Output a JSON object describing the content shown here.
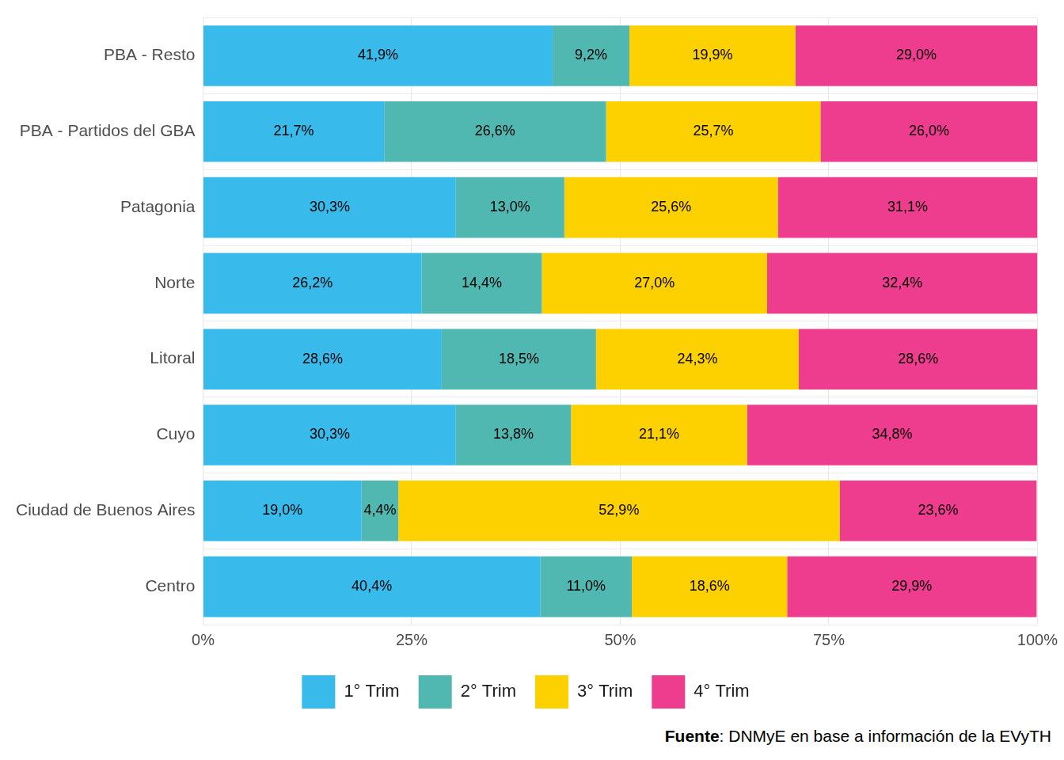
{
  "chart_data": {
    "type": "bar",
    "orientation": "horizontal",
    "stacked": true,
    "data_labels": true,
    "grid": true,
    "legend": "bottom",
    "caption": "Fuente: DNMyE en base a información de la EVyTH",
    "categories": [
      "PBA - Resto",
      "PBA - Partidos del GBA",
      "Patagonia",
      "Norte",
      "Litoral",
      "Cuyo",
      "Ciudad de Buenos Aires",
      "Centro"
    ],
    "xlim": [
      0,
      100
    ],
    "xticks": [
      {
        "value": 0,
        "label": "0%"
      },
      {
        "value": 25,
        "label": "25%"
      },
      {
        "value": 50,
        "label": "50%"
      },
      {
        "value": 75,
        "label": "75%"
      },
      {
        "value": 100,
        "label": "100%"
      }
    ],
    "series": [
      {
        "name": "1° Trim",
        "color": "#38BBEB",
        "values": [
          41.9,
          21.7,
          30.3,
          26.2,
          28.6,
          30.3,
          19.0,
          40.4
        ],
        "value_labels": [
          "41,9%",
          "21,7%",
          "30,3%",
          "26,2%",
          "28,6%",
          "30,3%",
          "19,0%",
          "40,4%"
        ]
      },
      {
        "name": "2° Trim",
        "color": "#50B8B1",
        "values": [
          9.2,
          26.6,
          13.0,
          14.4,
          18.5,
          13.8,
          4.4,
          11.0
        ],
        "value_labels": [
          "9,2%",
          "26,6%",
          "13,0%",
          "14,4%",
          "18,5%",
          "13,8%",
          "4,4%",
          "11,0%"
        ]
      },
      {
        "name": "3° Trim",
        "color": "#FDD000",
        "values": [
          19.9,
          25.7,
          25.6,
          27.0,
          24.3,
          21.1,
          52.9,
          18.6
        ],
        "value_labels": [
          "19,9%",
          "25,7%",
          "25,6%",
          "27,0%",
          "24,3%",
          "21,1%",
          "52,9%",
          "18,6%"
        ]
      },
      {
        "name": "4° Trim",
        "color": "#EE3D8F",
        "values": [
          29.0,
          26.0,
          31.1,
          32.4,
          28.6,
          34.8,
          23.6,
          29.9
        ],
        "value_labels": [
          "29,0%",
          "26,0%",
          "31,1%",
          "32,4%",
          "28,6%",
          "34,8%",
          "23,6%",
          "29,9%"
        ]
      }
    ]
  }
}
